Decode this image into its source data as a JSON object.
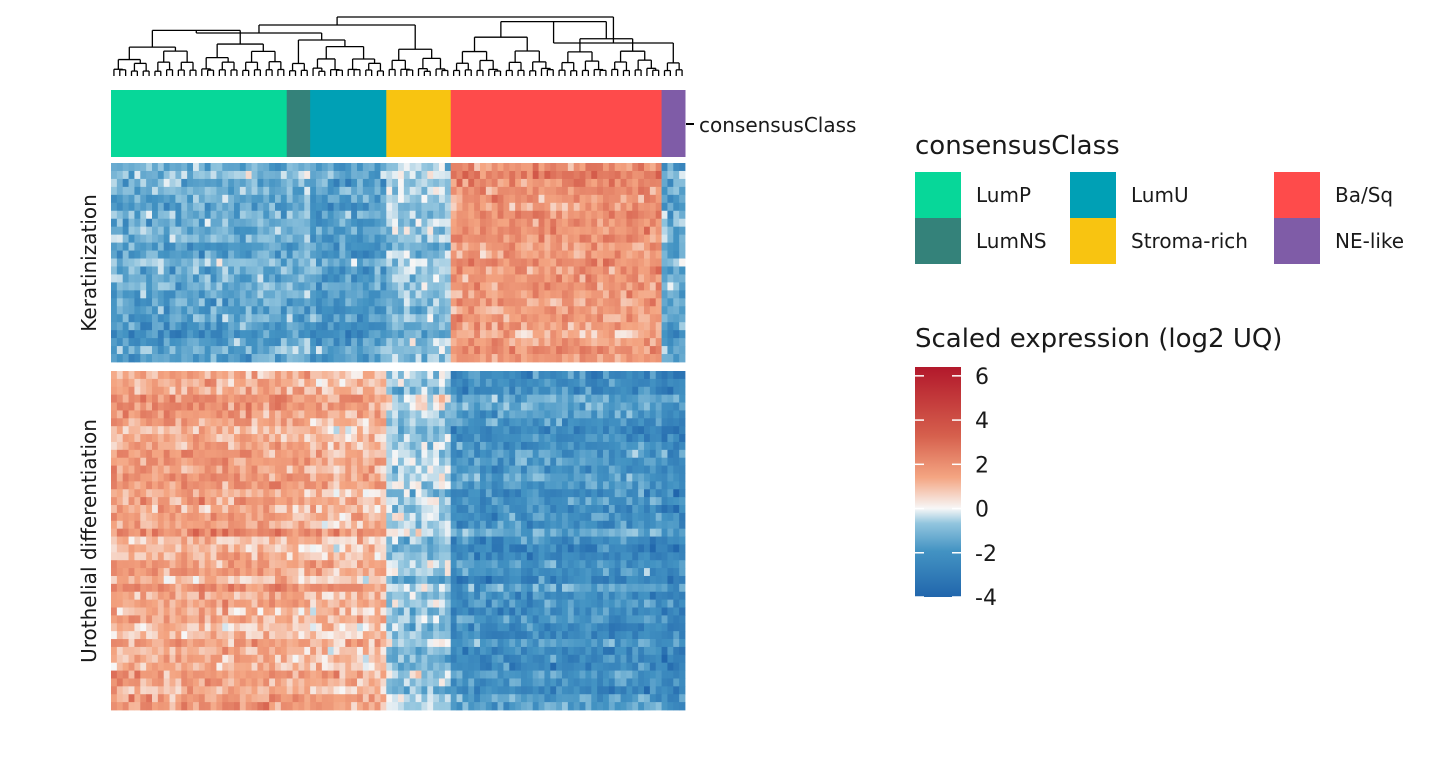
{
  "chart_data": {
    "type": "heatmap",
    "n_samples": 98,
    "annotation_track": {
      "label": "consensusClass",
      "segments": [
        {
          "class": "LumP",
          "count": 30
        },
        {
          "class": "LumNS",
          "count": 4
        },
        {
          "class": "LumU",
          "count": 13
        },
        {
          "class": "Stroma-rich",
          "count": 11
        },
        {
          "class": "Ba/Sq",
          "count": 36
        },
        {
          "class": "NE-like",
          "count": 4
        }
      ]
    },
    "row_groups": [
      {
        "label": "Keratinization",
        "n_genes": 25,
        "mean_by_class": {
          "LumP": -1.5,
          "LumNS": -1.3,
          "LumU": -1.8,
          "Stroma-rich": -0.9,
          "Ba/Sq": 1.8,
          "NE-like": -1.5
        }
      },
      {
        "label": "Urothelial differentiation",
        "n_genes": 43,
        "mean_by_class": {
          "LumP": 1.4,
          "LumNS": 1.2,
          "LumU": 1.0,
          "Stroma-rich": -0.8,
          "Ba/Sq": -2.2,
          "NE-like": -2.5
        }
      }
    ],
    "legend_class": {
      "title": "consensusClass",
      "items": [
        {
          "label": "LumP",
          "color": "#07D799"
        },
        {
          "label": "LumU",
          "color": "#00A0B5"
        },
        {
          "label": "Ba/Sq",
          "color": "#FE4B4B"
        },
        {
          "label": "LumNS",
          "color": "#34827A"
        },
        {
          "label": "Stroma-rich",
          "color": "#F8C411"
        },
        {
          "label": "NE-like",
          "color": "#7F5CA7"
        }
      ]
    },
    "legend_scale": {
      "title": "Scaled expression (log2 UQ)",
      "min": -4,
      "max": 6.4,
      "ticks": [
        "6",
        "4",
        "2",
        "0",
        "-2",
        "-4"
      ],
      "colors": {
        "low": "#2166AC",
        "mid": "#F7F7F7",
        "high": "#B2182B"
      }
    },
    "dendrogram": "hierarchical clustering of samples"
  }
}
